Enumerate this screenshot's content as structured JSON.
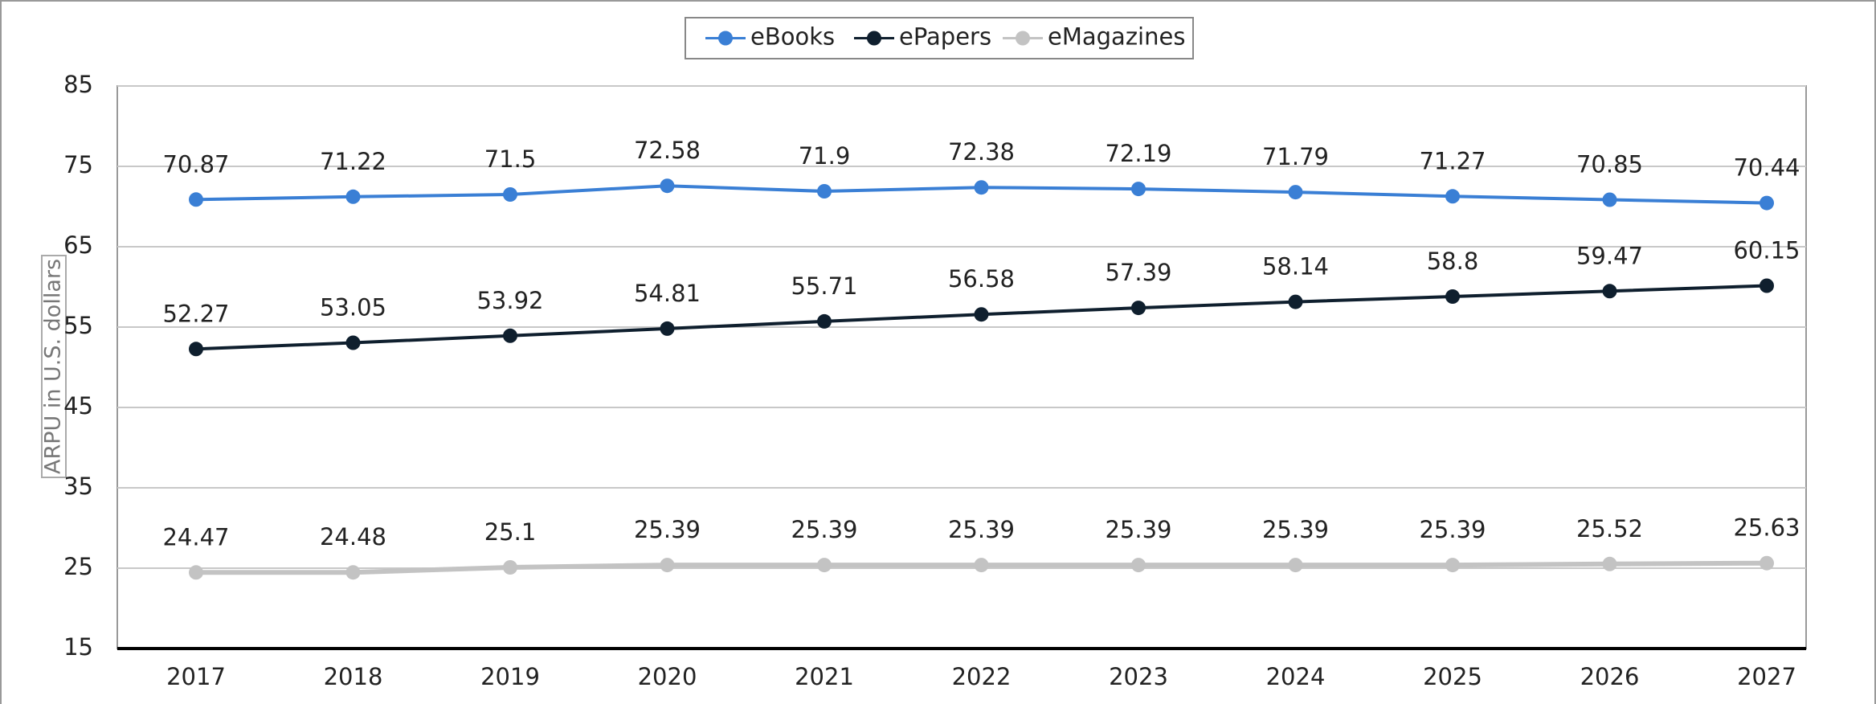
{
  "chart_data": {
    "type": "line",
    "ylabel": "ARPU in U.S. dollars",
    "categories": [
      "2017",
      "2018",
      "2019",
      "2020",
      "2021",
      "2022",
      "2023",
      "2024",
      "2025",
      "2026",
      "2027"
    ],
    "series": [
      {
        "name": "eBooks",
        "color": "#3a7fd5",
        "values": [
          70.87,
          71.22,
          71.5,
          72.58,
          71.9,
          72.38,
          72.19,
          71.79,
          71.27,
          70.85,
          70.44
        ]
      },
      {
        "name": "ePapers",
        "color": "#0f1f2e",
        "values": [
          52.27,
          53.05,
          53.92,
          54.81,
          55.71,
          56.58,
          57.39,
          58.14,
          58.8,
          59.47,
          60.15
        ]
      },
      {
        "name": "eMagazines",
        "color": "#c3c3c3",
        "values": [
          24.47,
          24.48,
          25.1,
          25.39,
          25.39,
          25.39,
          25.39,
          25.39,
          25.39,
          25.52,
          25.63
        ]
      }
    ],
    "ylim": [
      15,
      85
    ],
    "yticks": [
      15,
      25,
      35,
      45,
      55,
      65,
      75,
      85
    ],
    "grid": true,
    "legend": "top"
  }
}
